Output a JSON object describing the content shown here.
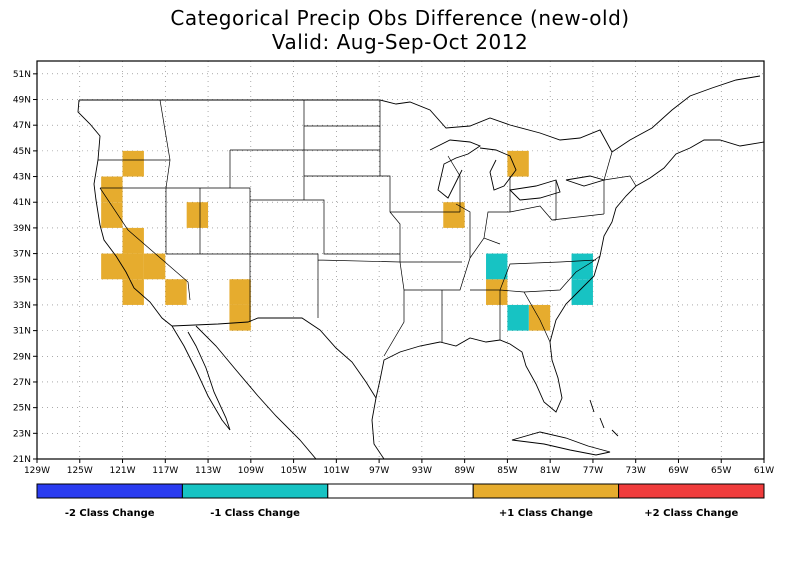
{
  "header": {
    "title_line1": "Categorical Precip Obs Difference (new-old)",
    "title_line2": "Valid: Aug-Sep-Oct 2012"
  },
  "map": {
    "lon_range": [
      -129,
      -61
    ],
    "lat_range": [
      21,
      52
    ],
    "lon_ticks": [
      {
        "value": -129,
        "label": "129W"
      },
      {
        "value": -125,
        "label": "125W"
      },
      {
        "value": -121,
        "label": "121W"
      },
      {
        "value": -117,
        "label": "117W"
      },
      {
        "value": -113,
        "label": "113W"
      },
      {
        "value": -109,
        "label": "109W"
      },
      {
        "value": -105,
        "label": "105W"
      },
      {
        "value": -101,
        "label": "101W"
      },
      {
        "value": -97,
        "label": "97W"
      },
      {
        "value": -93,
        "label": "93W"
      },
      {
        "value": -89,
        "label": "89W"
      },
      {
        "value": -85,
        "label": "85W"
      },
      {
        "value": -81,
        "label": "81W"
      },
      {
        "value": -77,
        "label": "77W"
      },
      {
        "value": -73,
        "label": "73W"
      },
      {
        "value": -69,
        "label": "69W"
      },
      {
        "value": -65,
        "label": "65W"
      },
      {
        "value": -61,
        "label": "61W"
      }
    ],
    "lat_ticks": [
      {
        "value": 21,
        "label": "21N"
      },
      {
        "value": 23,
        "label": "23N"
      },
      {
        "value": 25,
        "label": "25N"
      },
      {
        "value": 27,
        "label": "27N"
      },
      {
        "value": 29,
        "label": "29N"
      },
      {
        "value": 31,
        "label": "31N"
      },
      {
        "value": 33,
        "label": "33N"
      },
      {
        "value": 35,
        "label": "35N"
      },
      {
        "value": 37,
        "label": "37N"
      },
      {
        "value": 39,
        "label": "39N"
      },
      {
        "value": 41,
        "label": "41N"
      },
      {
        "value": 43,
        "label": "43N"
      },
      {
        "value": 45,
        "label": "45N"
      },
      {
        "value": 47,
        "label": "47N"
      },
      {
        "value": 49,
        "label": "49N"
      },
      {
        "value": 51,
        "label": "51N"
      }
    ],
    "grid": "dotted",
    "cell_size_deg": 2,
    "cells": [
      {
        "lon": -123,
        "lat": 41,
        "change": 1
      },
      {
        "lon": -123,
        "lat": 39,
        "change": 1
      },
      {
        "lon": -121,
        "lat": 43,
        "change": 1
      },
      {
        "lon": -121,
        "lat": 37,
        "change": 1
      },
      {
        "lon": -121,
        "lat": 35,
        "change": 1
      },
      {
        "lon": -121,
        "lat": 33,
        "change": 1
      },
      {
        "lon": -123,
        "lat": 35,
        "change": 1
      },
      {
        "lon": -119,
        "lat": 35,
        "change": 1
      },
      {
        "lon": -117,
        "lat": 33,
        "change": 1
      },
      {
        "lon": -115,
        "lat": 39,
        "change": 1
      },
      {
        "lon": -111,
        "lat": 33,
        "change": 1
      },
      {
        "lon": -111,
        "lat": 31,
        "change": 1
      },
      {
        "lon": -91,
        "lat": 39,
        "change": 1
      },
      {
        "lon": -85,
        "lat": 43,
        "change": 1
      },
      {
        "lon": -87,
        "lat": 33,
        "change": 1
      },
      {
        "lon": -83,
        "lat": 31,
        "change": 1
      },
      {
        "lon": -87,
        "lat": 35,
        "change": -1
      },
      {
        "lon": -85,
        "lat": 31,
        "change": -1
      },
      {
        "lon": -79,
        "lat": 35,
        "change": -1
      },
      {
        "lon": -79,
        "lat": 33,
        "change": -1
      }
    ]
  },
  "legend": {
    "segments": [
      {
        "label": "-2 Class Change",
        "color": "#2a3cf0"
      },
      {
        "label": "-1 Class Change",
        "color": "#17c3c3"
      },
      {
        "label": "",
        "color": "#ffffff"
      },
      {
        "label": "+1 Class Change",
        "color": "#e6ac2e"
      },
      {
        "label": "+2 Class Change",
        "color": "#f03c3c"
      }
    ]
  }
}
